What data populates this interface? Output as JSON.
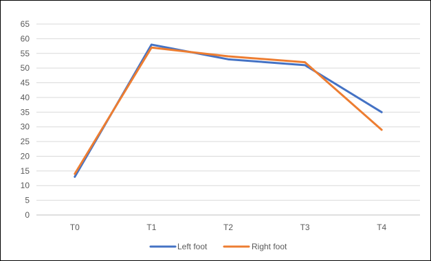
{
  "chart_data": {
    "type": "line",
    "categories": [
      "T0",
      "T1",
      "T2",
      "T3",
      "T4"
    ],
    "series": [
      {
        "name": "Left foot",
        "values": [
          13,
          58,
          53,
          51,
          35
        ],
        "color": "#4472C4"
      },
      {
        "name": "Right foot",
        "values": [
          14,
          57,
          54,
          52,
          29
        ],
        "color": "#ED7D31"
      }
    ],
    "ylim": [
      0,
      65
    ],
    "yticks": [
      0,
      5,
      10,
      15,
      20,
      25,
      30,
      35,
      40,
      45,
      50,
      55,
      60,
      65
    ],
    "grid": true,
    "legend_position": "bottom"
  }
}
